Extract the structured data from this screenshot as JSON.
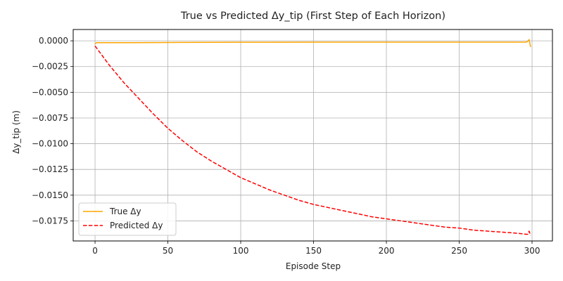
{
  "chart_data": {
    "type": "line",
    "title": "True vs Predicted Δy_tip (First Step of Each Horizon)",
    "xlabel": "Episode Step",
    "ylabel": "Δy_tip (m)",
    "xlim": [
      -15,
      314
    ],
    "ylim": [
      -0.01945,
      0.0011
    ],
    "xticks": [
      0,
      50,
      100,
      150,
      200,
      250,
      300
    ],
    "xtick_labels": [
      "0",
      "50",
      "100",
      "150",
      "200",
      "250",
      "300"
    ],
    "yticks": [
      0.0,
      -0.0025,
      -0.005,
      -0.0075,
      -0.01,
      -0.0125,
      -0.015,
      -0.0175
    ],
    "ytick_labels": [
      "0.0000",
      "−0.0025",
      "−0.0050",
      "−0.0075",
      "−0.0100",
      "−0.0125",
      "−0.0150",
      "−0.0175"
    ],
    "grid": true,
    "legend_position": "lower-left",
    "series": [
      {
        "name": "True Δy",
        "color": "#ffa500",
        "dash": "solid",
        "x": [
          0,
          1,
          2,
          25,
          50,
          100,
          150,
          200,
          250,
          296,
          297,
          298,
          299
        ],
        "y": [
          -0.0003,
          -0.00018,
          -0.00018,
          -0.00018,
          -0.00016,
          -0.00014,
          -0.00013,
          -0.00013,
          -0.00013,
          -0.00013,
          -5e-05,
          0.00012,
          -0.0006
        ]
      },
      {
        "name": "Predicted Δy",
        "color": "#ff0000",
        "dash": "dashed",
        "x": [
          0,
          10,
          20,
          30,
          40,
          50,
          60,
          70,
          80,
          90,
          100,
          110,
          120,
          130,
          140,
          150,
          160,
          170,
          180,
          190,
          200,
          210,
          220,
          230,
          240,
          250,
          260,
          270,
          280,
          290,
          296,
          297,
          298,
          299
        ],
        "y": [
          -0.0005,
          -0.0024,
          -0.0041,
          -0.0056,
          -0.0071,
          -0.0085,
          -0.0097,
          -0.0108,
          -0.0117,
          -0.0125,
          -0.0133,
          -0.0139,
          -0.0145,
          -0.015,
          -0.0155,
          -0.0159,
          -0.0162,
          -0.0165,
          -0.0168,
          -0.0171,
          -0.0173,
          -0.0175,
          -0.0177,
          -0.0179,
          -0.0181,
          -0.0182,
          -0.0184,
          -0.0185,
          -0.0186,
          -0.0187,
          -0.0188,
          -0.0188,
          -0.0185,
          -0.0189
        ]
      }
    ]
  }
}
